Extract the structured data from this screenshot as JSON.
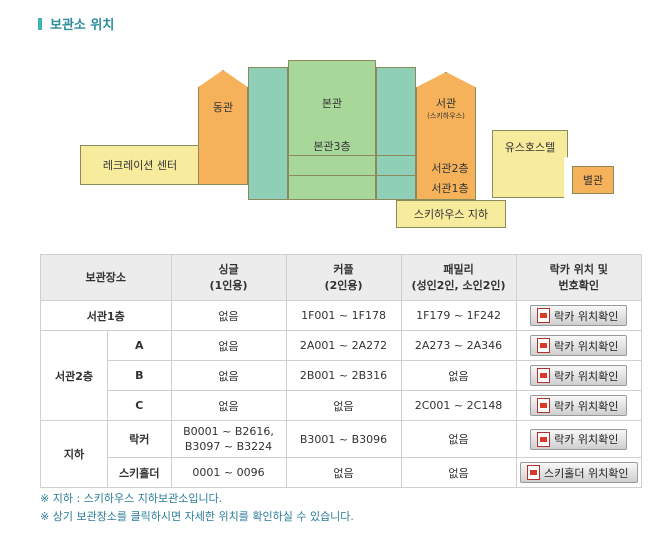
{
  "title": "보관소 위치",
  "map": {
    "recreation": "레크레이션 센터",
    "east": "동관",
    "main": "본관",
    "main3": "본관3층",
    "west": "서관",
    "west_sub": "(스키하우스)",
    "west2": "서관2층",
    "west1": "서관1층",
    "youth": "유스호스텔",
    "annex": "별관",
    "ski_basement": "스키하우스 지하"
  },
  "table": {
    "headers": [
      {
        "line1": "보관장소",
        "line2": ""
      },
      {
        "line1": "싱글",
        "line2": "(1인용)"
      },
      {
        "line1": "커플",
        "line2": "(2인용)"
      },
      {
        "line1": "패밀리",
        "line2": "(성인2인, 소인2인)"
      },
      {
        "line1": "락카 위치 및",
        "line2": "번호확인"
      }
    ],
    "rows": [
      {
        "group": "서관1층",
        "sub": "",
        "single": "없음",
        "single2": "",
        "couple": "1F001 ~ 1F178",
        "family": "1F179 ~ 1F242",
        "button": "락카 위치확인"
      },
      {
        "group": "서관2층",
        "sub": "A",
        "single": "없음",
        "single2": "",
        "couple": "2A001 ~ 2A272",
        "family": "2A273 ~ 2A346",
        "button": "락카 위치확인"
      },
      {
        "group": "",
        "sub": "B",
        "single": "없음",
        "single2": "",
        "couple": "2B001 ~ 2B316",
        "family": "없음",
        "button": "락카 위치확인"
      },
      {
        "group": "",
        "sub": "C",
        "single": "없음",
        "single2": "",
        "couple": "없음",
        "family": "2C001 ~ 2C148",
        "button": "락카 위치확인"
      },
      {
        "group": "지하",
        "sub": "락커",
        "single": "B0001 ~ B2616,",
        "single2": "B3097 ~ B3224",
        "couple": "B3001 ~ B3096",
        "family": "없음",
        "button": "락카 위치확인"
      },
      {
        "group": "",
        "sub": "스키홀더",
        "single": "0001 ~ 0096",
        "single2": "",
        "couple": "없음",
        "family": "없음",
        "button": "스키홀더 위치확인"
      }
    ]
  },
  "notes": [
    "※ 지하 : 스키하우스 지하보관소입니다.",
    "※ 상기 보관장소를 클릭하시면 자세한 위치를 확인하실 수 있습니다."
  ],
  "colors": {
    "accent": "#2c8e9a",
    "orange": "#f5b25a",
    "yellow": "#f7eb9e",
    "green": "#a8d79a",
    "teal": "#8fcfb8"
  }
}
